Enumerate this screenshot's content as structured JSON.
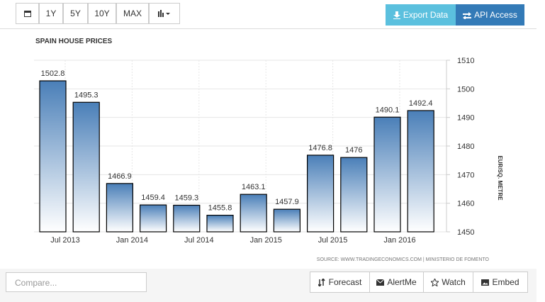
{
  "toolbar": {
    "ranges": [
      "1Y",
      "5Y",
      "10Y",
      "MAX"
    ],
    "export": "Export Data",
    "api": "API Access"
  },
  "chart_data": {
    "type": "bar",
    "title": "SPAIN HOUSE PRICES",
    "y_axis_label": "EUR/SQ. METRE",
    "source": "SOURCE: WWW.TRADINGECONOMICS.COM | MINISTERIO DE FOMENTO",
    "categories": [
      "Jul 2013",
      null,
      "Jan 2014",
      null,
      "Jul 2014",
      null,
      "Jan 2015",
      null,
      "Jul 2015",
      null,
      "Jan 2016",
      null
    ],
    "values": [
      1502.8,
      1495.3,
      1466.9,
      1459.4,
      1459.3,
      1455.8,
      1463.1,
      1457.9,
      1476.8,
      1476,
      1490.1,
      1492.4
    ],
    "color": "#4a7fb8",
    "ylim": [
      1450,
      1510
    ],
    "yticks": [
      1450,
      1460,
      1470,
      1480,
      1490,
      1500,
      1510
    ],
    "grid": true
  },
  "footer": {
    "compare_placeholder": "Compare...",
    "buttons": [
      "Forecast",
      "AlertMe",
      "Watch",
      "Embed"
    ]
  }
}
